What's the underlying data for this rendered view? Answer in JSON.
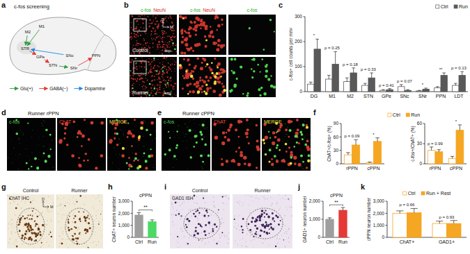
{
  "diagram": {
    "panel_label": "a",
    "title": "c-fos screening",
    "regions": [
      "M1",
      "M2",
      "STR",
      "GPe",
      "STN",
      "SNc",
      "SNr",
      "PPN"
    ],
    "connections": [
      {
        "from": 1,
        "to": 2,
        "kind": 0
      },
      {
        "from": 0,
        "to": 2,
        "kind": 0
      },
      {
        "from": 2,
        "to": 3,
        "kind": 1
      },
      {
        "from": 3,
        "to": 4,
        "kind": 1
      },
      {
        "from": 4,
        "to": 6,
        "kind": 0
      },
      {
        "from": 5,
        "to": 2,
        "kind": 2
      },
      {
        "from": 6,
        "to": 7,
        "kind": 1
      }
    ],
    "legend": [
      {
        "label": "Glu(+)",
        "color": "#2e9e3e"
      },
      {
        "label": "GABA(−)",
        "color": "#e53935"
      },
      {
        "label": "Dopamine",
        "color": "#1e88e5"
      }
    ]
  },
  "micrographs": [
    {
      "panel_label": "b",
      "column_heads": [
        [
          {
            "text": "c-fos",
            "color": "#2fae2f"
          },
          {
            "text": "NeuN",
            "color": "#e0302a"
          }
        ],
        [
          {
            "text": "c-fos",
            "color": "#2fae2f"
          },
          {
            "text": "NeuN",
            "color": "#e0302a"
          }
        ],
        [
          {
            "text": "c-fos",
            "color": "#2fae2f"
          }
        ]
      ],
      "rows": [
        "Control",
        "Runner"
      ],
      "region_label": "scp",
      "compass": [
        "D",
        "M"
      ]
    },
    {
      "panel_label": "d",
      "title": "Runner rPPN",
      "channels": [
        {
          "text": "c-fos",
          "color": "#57d957"
        },
        {
          "text": "ChAT",
          "color": "#ff4a40"
        },
        {
          "text": "MERGE",
          "color": "#f0e040"
        }
      ]
    },
    {
      "panel_label": "e",
      "title": "Runner cPPN",
      "channels": [
        {
          "text": "c-fos",
          "color": "#57d957"
        },
        {
          "text": "ChAT",
          "color": "#ff4a40"
        },
        {
          "text": "MERGE",
          "color": "#f0e040"
        }
      ]
    },
    {
      "panel_label": "g",
      "stain": "ChAT IHC",
      "conditions": [
        "Control",
        "Runner"
      ],
      "compass": [
        "D",
        "M"
      ]
    },
    {
      "panel_label": "i",
      "stain": "GAD1 ISH",
      "conditions": [
        "Control",
        "Runner"
      ]
    }
  ],
  "chart_data": [
    {
      "panel_label": "c",
      "type": "bar",
      "categories": [
        "DG",
        "M1",
        "M2",
        "STN",
        "GPe",
        "SNc",
        "SNr",
        "PPN",
        "LDT"
      ],
      "series": [
        {
          "name": "Ctrl",
          "color": "#ffffff",
          "values": [
            30,
            50,
            40,
            25,
            5,
            20,
            3,
            15,
            25
          ],
          "errors": [
            8,
            15,
            15,
            8,
            3,
            8,
            2,
            5,
            8
          ]
        },
        {
          "name": "Run",
          "color": "#595959",
          "values": [
            170,
            110,
            75,
            55,
            8,
            5,
            10,
            65,
            65
          ],
          "errors": [
            40,
            50,
            20,
            20,
            4,
            3,
            4,
            10,
            15
          ]
        }
      ],
      "ylabel": "c-fos+ cell counts per mm²",
      "ylim": [
        0,
        300
      ],
      "yticks": [
        0,
        100,
        200,
        300
      ],
      "annotations": [
        "*",
        "p = 0.25",
        "p = 0.18",
        "p = 0.33",
        "p = 0.41",
        "p = 0.07",
        "*",
        "**",
        "p = 0.13"
      ],
      "legend": "top right"
    },
    {
      "panel_label": "f",
      "type": "bar",
      "categories": [
        "rPPN",
        "cPPN"
      ],
      "series": [
        {
          "name": "Ctrl",
          "color": "#ffffff",
          "values": [
            20,
            2
          ],
          "errors": [
            5,
            2
          ]
        },
        {
          "name": "Run",
          "color": "#f5a623",
          "values": [
            42,
            50
          ],
          "errors": [
            12,
            8
          ]
        }
      ],
      "ylabel": "ChAT+/c-fos+ (%)",
      "ylim": [
        0,
        90
      ],
      "yticks": [
        0,
        30,
        60,
        90
      ],
      "annotations": [
        "p = 0.09",
        "*"
      ],
      "legend": "top"
    },
    {
      "type": "bar",
      "categories": [
        "rPPN",
        "cPPN"
      ],
      "series": [
        {
          "color": "#ffffff",
          "values": [
            20,
            8
          ],
          "errors": [
            5,
            3
          ]
        },
        {
          "color": "#f5a623",
          "values": [
            18,
            50
          ],
          "errors": [
            3,
            8
          ]
        }
      ],
      "ylabel": "c-fos+/ChAT+ (%)",
      "ylim": [
        0,
        60
      ],
      "yticks": [
        0,
        30,
        60
      ],
      "annotations": [
        "p = 0.99",
        "*"
      ]
    },
    {
      "panel_label": "h",
      "type": "bar",
      "title": "cPPN",
      "categories": [
        "Ctrl",
        "Run"
      ],
      "series": [
        {
          "colors": [
            "#9e9e9e",
            "#4cd964"
          ],
          "values": [
            1850,
            1300
          ],
          "errors": [
            200,
            150
          ]
        }
      ],
      "ylabel": "ChAT+ neuron number",
      "ylim": [
        0,
        3000
      ],
      "yticks": [
        0,
        {
          "value": 1000,
          "label": "1,000"
        },
        {
          "value": 2000,
          "label": "2,000"
        },
        {
          "value": 3000,
          "label": "3,000"
        }
      ],
      "annotations": [
        "**"
      ]
    },
    {
      "panel_label": "j",
      "type": "bar",
      "title": "cPPN",
      "categories": [
        "Ctrl",
        "Run"
      ],
      "series": [
        {
          "colors": [
            "#9e9e9e",
            "#e53935"
          ],
          "values": [
            1000,
            1500
          ],
          "errors": [
            80,
            150
          ]
        }
      ],
      "ylabel": "GAD1+ neuron number",
      "ylim": [
        0,
        2000
      ],
      "yticks": [
        0,
        {
          "value": 1000,
          "label": "1,000"
        },
        {
          "value": 2000,
          "label": "2,000"
        }
      ],
      "annotations": [
        "**"
      ]
    },
    {
      "panel_label": "k",
      "type": "bar",
      "categories": [
        "ChAT+",
        "GAD1+"
      ],
      "series": [
        {
          "name": "Ctrl",
          "color": "#ffffff",
          "values": [
            2000,
            1150
          ],
          "errors": [
            200,
            200
          ]
        },
        {
          "name": "Run + Rest",
          "color": "#f5a623",
          "values": [
            2050,
            1150
          ],
          "errors": [
            350,
            250
          ]
        }
      ],
      "ylabel": "cPPN neuron number",
      "ylim": [
        0,
        3000
      ],
      "yticks": [
        0,
        {
          "value": 1000,
          "label": "1,000"
        },
        {
          "value": 2000,
          "label": "2,000"
        },
        {
          "value": 3000,
          "label": "3,000"
        }
      ],
      "annotations": [
        "p = 0.66",
        "p = 0.93"
      ],
      "legend": "top"
    }
  ]
}
